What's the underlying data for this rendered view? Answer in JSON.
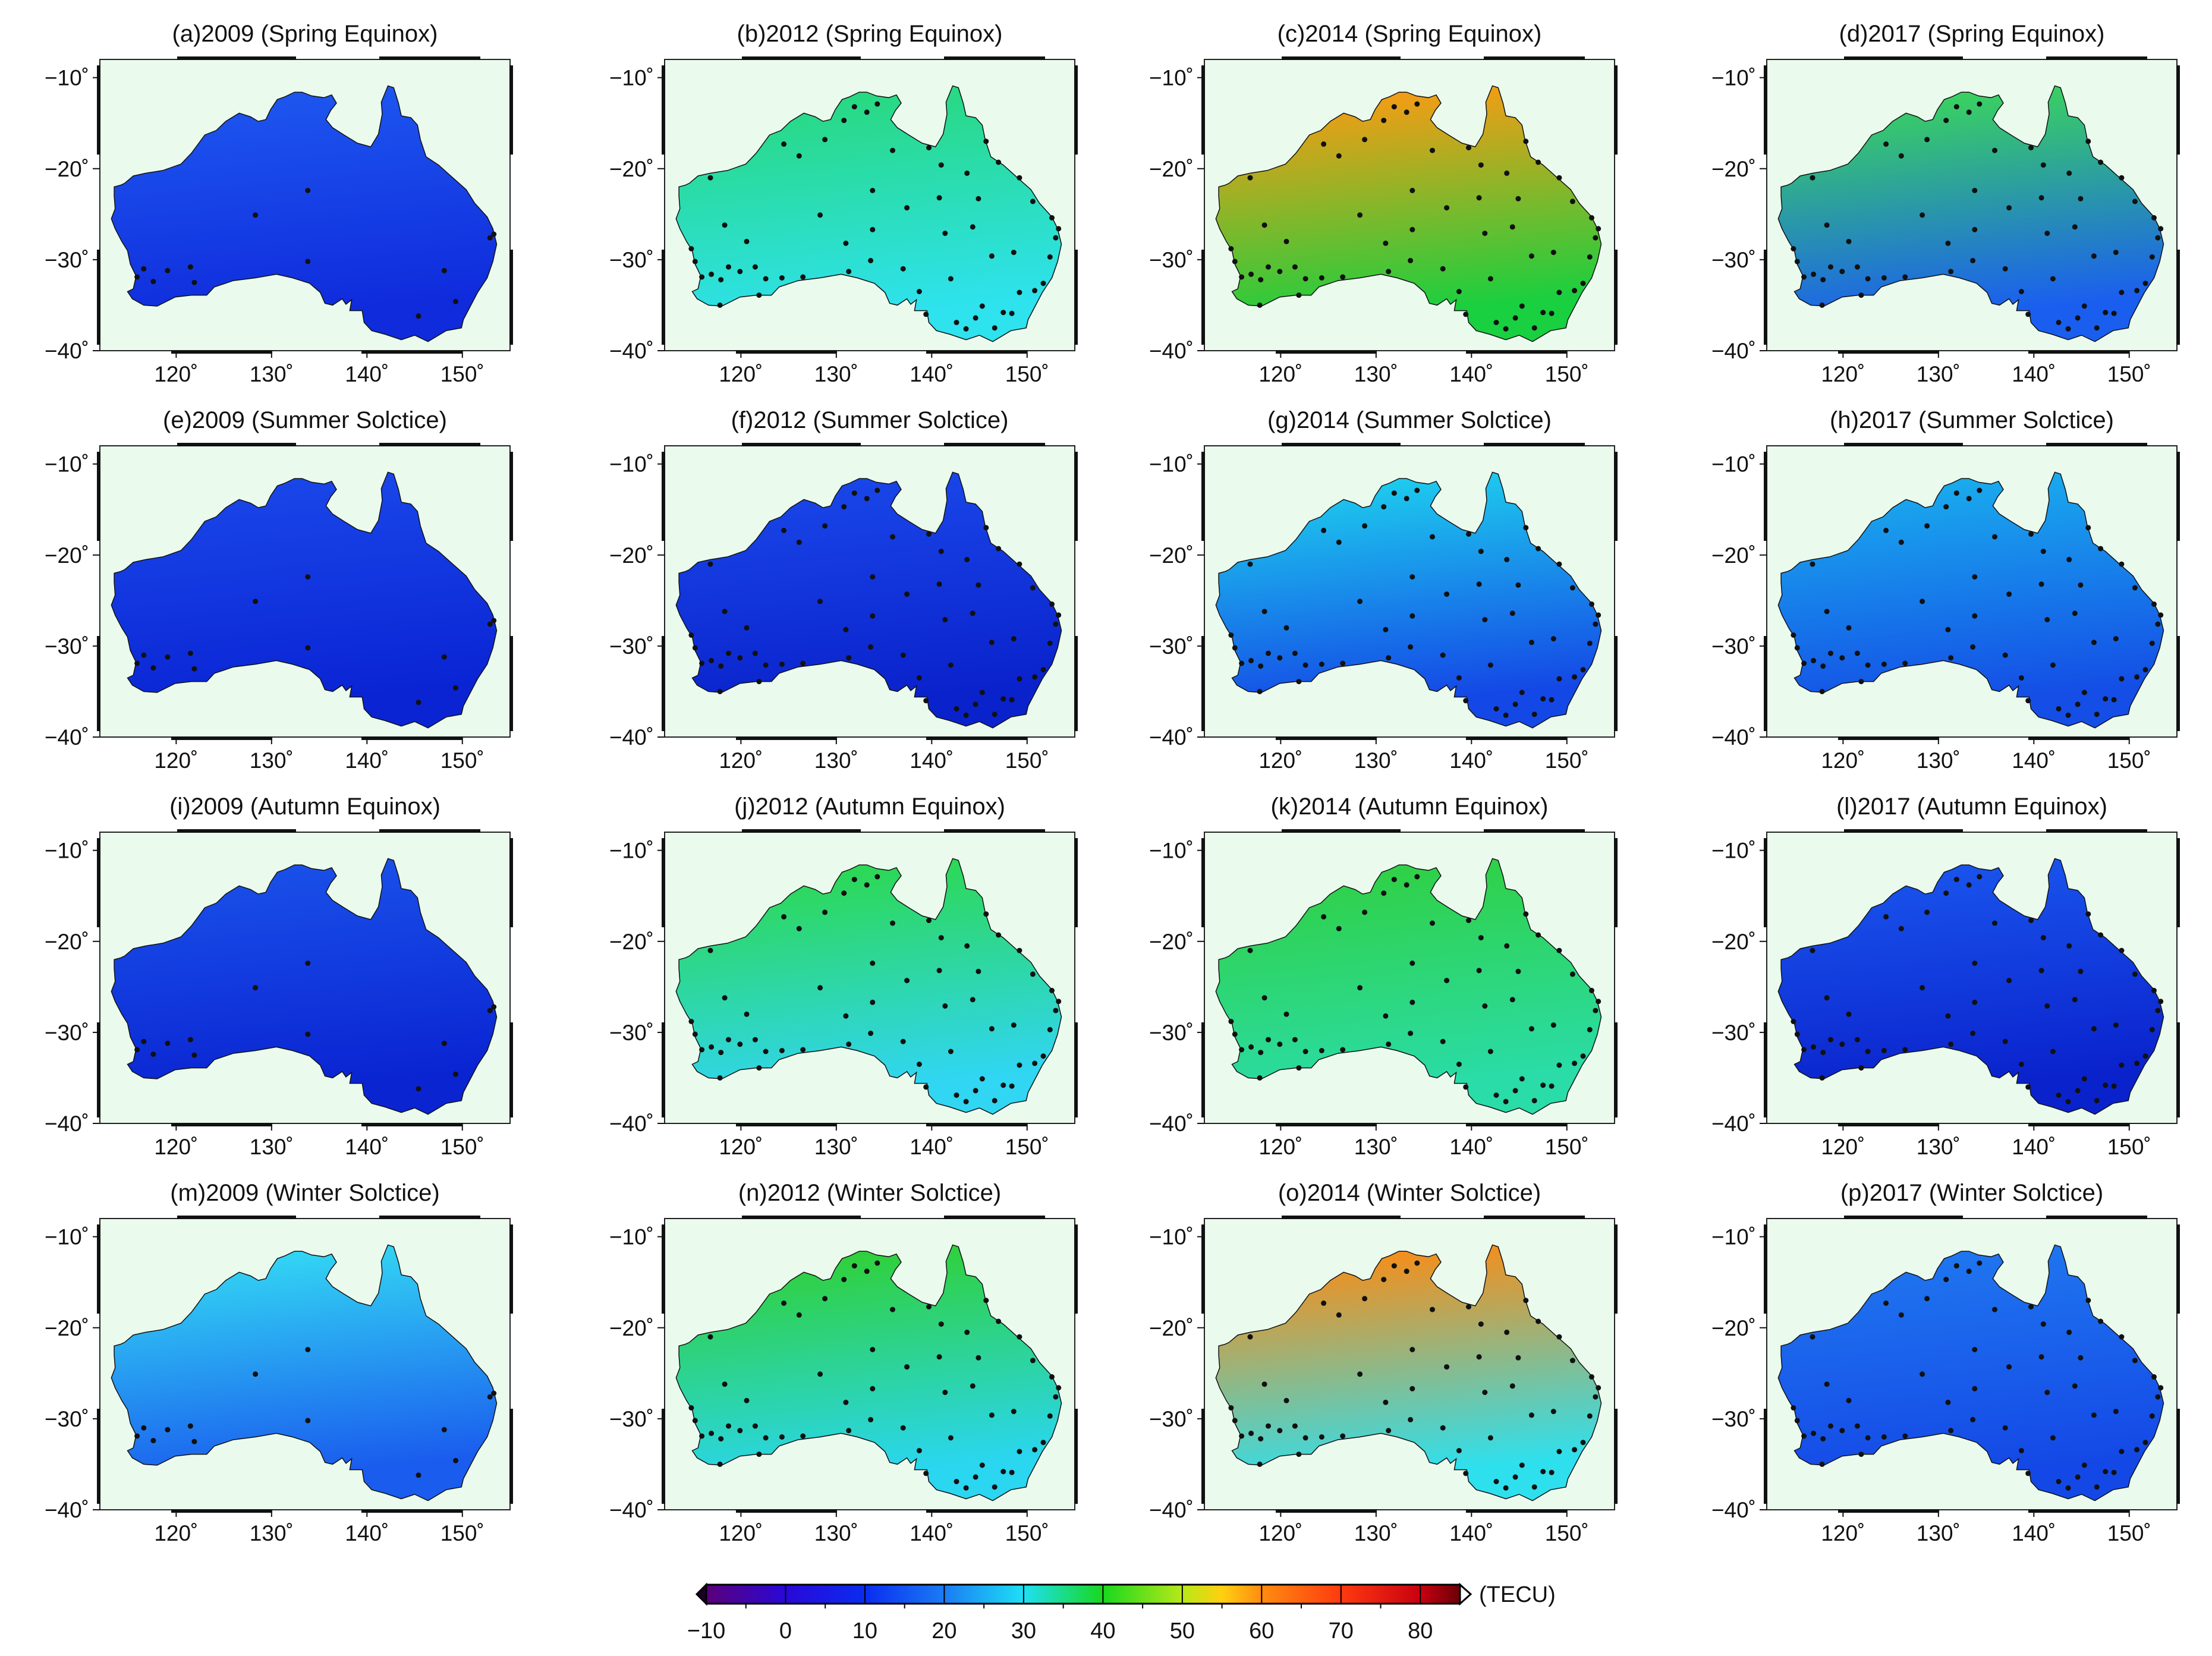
{
  "figure": {
    "panels": [
      {
        "title": "(a)2009 (Spring Equinox)",
        "year": "2009",
        "season": "Spring Equinox",
        "colors": [
          "#1e58f0",
          "#0f2bdc"
        ],
        "stations": "sparse"
      },
      {
        "title": "(b)2012 (Spring Equinox)",
        "year": "2012",
        "season": "Spring Equinox",
        "colors": [
          "#28d87a",
          "#2ee2ee"
        ],
        "stations": "dense"
      },
      {
        "title": "(c)2014 (Spring Equinox)",
        "year": "2014",
        "season": "Spring Equinox",
        "colors": [
          "#ff9a12",
          "#18d040"
        ],
        "stations": "dense"
      },
      {
        "title": "(d)2017 (Spring Equinox)",
        "year": "2017",
        "season": "Spring Equinox",
        "colors": [
          "#3cd858",
          "#1a5ef0"
        ],
        "stations": "dense"
      },
      {
        "title": "(e)2009 (Summer Solctice)",
        "year": "2009",
        "season": "Summer Solctice",
        "colors": [
          "#1a48ea",
          "#0a24d4"
        ],
        "stations": "sparse"
      },
      {
        "title": "(f)2012 (Summer Solctice)",
        "year": "2012",
        "season": "Summer Solctice",
        "colors": [
          "#1a48ea",
          "#0a22cc"
        ],
        "stations": "dense"
      },
      {
        "title": "(g)2014 (Summer Solctice)",
        "year": "2014",
        "season": "Summer Solctice",
        "colors": [
          "#1ed2ee",
          "#1448e6"
        ],
        "stations": "dense"
      },
      {
        "title": "(h)2017 (Summer Solctice)",
        "year": "2017",
        "season": "Summer Solctice",
        "colors": [
          "#1ab0ee",
          "#144ee6"
        ],
        "stations": "dense"
      },
      {
        "title": "(i)2009 (Autumn Equinox)",
        "year": "2009",
        "season": "Autumn Equinox",
        "colors": [
          "#1a52ea",
          "#0a24d2"
        ],
        "stations": "sparse"
      },
      {
        "title": "(j)2012 (Autumn Equinox)",
        "year": "2012",
        "season": "Autumn Equinox",
        "colors": [
          "#2cd84a",
          "#30d6f2"
        ],
        "stations": "dense"
      },
      {
        "title": "(k)2014 (Autumn Equinox)",
        "year": "2014",
        "season": "Autumn Equinox",
        "colors": [
          "#30d040",
          "#2adca8"
        ],
        "stations": "dense"
      },
      {
        "title": "(l)2017 (Autumn Equinox)",
        "year": "2017",
        "season": "Autumn Equinox",
        "colors": [
          "#1a56ee",
          "#0a22cc"
        ],
        "stations": "dense"
      },
      {
        "title": "(m)2009 (Winter Solctice)",
        "year": "2009",
        "season": "Winter Solctice",
        "colors": [
          "#34dcf4",
          "#1a5cee"
        ],
        "stations": "sparse"
      },
      {
        "title": "(n)2012 (Winter Solctice)",
        "year": "2012",
        "season": "Winter Solctice",
        "colors": [
          "#30d030",
          "#2ad6f0"
        ],
        "stations": "dense"
      },
      {
        "title": "(o)2014 (Winter Solctice)",
        "year": "2014",
        "season": "Winter Solctice",
        "colors": [
          "#ff8a10",
          "#2ee0ee"
        ],
        "stations": "dense"
      },
      {
        "title": "(p)2017 (Winter Solctice)",
        "year": "2017",
        "season": "Winter Solctice",
        "colors": [
          "#2078f0",
          "#1448e6"
        ],
        "stations": "dense"
      }
    ],
    "lat_ticks": [
      "−10˚",
      "−20˚",
      "−30˚",
      "−40˚"
    ],
    "lon_ticks": [
      "120˚",
      "130˚",
      "140˚",
      "150˚"
    ],
    "colorbar": {
      "unit": "(TECU)",
      "range": [
        -10,
        85
      ],
      "ticks": [
        "−10",
        "0",
        "10",
        "20",
        "30",
        "40",
        "50",
        "60",
        "70",
        "80"
      ]
    },
    "palette": {
      "background": "#eafbee",
      "station": "#111111"
    }
  }
}
